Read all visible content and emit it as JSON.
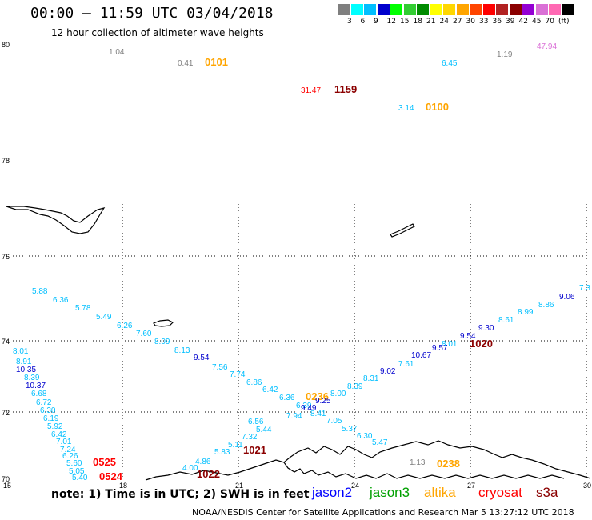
{
  "header": {
    "title": "00:00 – 11:59 UTC 03/04/2018",
    "subtitle": "12 hour collection of altimeter wave heights"
  },
  "scale": {
    "unit": "(ft)",
    "colors": [
      "#7f7f7f",
      "#00ffff",
      "#00bfff",
      "#0000cd",
      "#00ff00",
      "#32cd32",
      "#008b00",
      "#ffff00",
      "#ffd700",
      "#ffa500",
      "#ff4500",
      "#ff0000",
      "#b22222",
      "#8b0000",
      "#9400d3",
      "#da70d6",
      "#ff69b4",
      "#000000"
    ],
    "labels": [
      "3",
      "6",
      "9",
      "12",
      "15",
      "18",
      "21",
      "24",
      "27",
      "30",
      "33",
      "36",
      "39",
      "42",
      "45",
      "70"
    ]
  },
  "axes": {
    "lat_labels": [
      "80",
      "78",
      "76",
      "74",
      "72",
      "70"
    ],
    "lon_labels": [
      "15",
      "18",
      "21",
      "24",
      "27",
      "30"
    ]
  },
  "points": [
    {
      "v": "1.04",
      "c": "#7f7f7f"
    },
    {
      "v": "0.41",
      "c": "#7f7f7f"
    },
    {
      "v": "0101",
      "c": "#ffa500",
      "tag": true
    },
    {
      "v": "6.45",
      "c": "#00bfff"
    },
    {
      "v": "1.19",
      "c": "#7f7f7f"
    },
    {
      "v": "47.94",
      "c": "#da70d6"
    },
    {
      "v": "31.47",
      "c": "#ff0000"
    },
    {
      "v": "1159",
      "c": "#8b0000",
      "tag": true
    },
    {
      "v": "3.14",
      "c": "#00bfff"
    },
    {
      "v": "0100",
      "c": "#ffa500",
      "tag": true
    },
    {
      "v": "5.88",
      "c": "#00bfff"
    },
    {
      "v": "6.36",
      "c": "#00bfff"
    },
    {
      "v": "5.78",
      "c": "#00bfff"
    },
    {
      "v": "5.49",
      "c": "#00bfff"
    },
    {
      "v": "6.26",
      "c": "#00bfff"
    },
    {
      "v": "7.60",
      "c": "#00bfff"
    },
    {
      "v": "8.09",
      "c": "#00bfff"
    },
    {
      "v": "8.13",
      "c": "#00bfff"
    },
    {
      "v": "9.54",
      "c": "#0000cd"
    },
    {
      "v": "7.56",
      "c": "#00bfff"
    },
    {
      "v": "7.74",
      "c": "#00bfff"
    },
    {
      "v": "6.86",
      "c": "#00bfff"
    },
    {
      "v": "6.42",
      "c": "#00bfff"
    },
    {
      "v": "6.36",
      "c": "#00bfff"
    },
    {
      "v": "6.39",
      "c": "#00bfff"
    },
    {
      "v": "9.49",
      "c": "#0000cd"
    },
    {
      "v": "0236",
      "c": "#ffa500",
      "tag": true
    },
    {
      "v": "9.25",
      "c": "#0000cd"
    },
    {
      "v": "8.00",
      "c": "#00bfff"
    },
    {
      "v": "8.39",
      "c": "#00bfff"
    },
    {
      "v": "8.31",
      "c": "#00bfff"
    },
    {
      "v": "9.02",
      "c": "#0000cd"
    },
    {
      "v": "7.61",
      "c": "#00bfff"
    },
    {
      "v": "10.67",
      "c": "#0000cd"
    },
    {
      "v": "9.57",
      "c": "#0000cd"
    },
    {
      "v": "8.01",
      "c": "#00bfff"
    },
    {
      "v": "1020",
      "c": "#8b0000",
      "tag": true
    },
    {
      "v": "9.54",
      "c": "#0000cd"
    },
    {
      "v": "9.30",
      "c": "#0000cd"
    },
    {
      "v": "8.61",
      "c": "#00bfff"
    },
    {
      "v": "8.99",
      "c": "#00bfff"
    },
    {
      "v": "8.86",
      "c": "#00bfff"
    },
    {
      "v": "9.06",
      "c": "#0000cd"
    },
    {
      "v": "7.3",
      "c": "#00bfff"
    },
    {
      "v": "8.01",
      "c": "#00bfff"
    },
    {
      "v": "8.91",
      "c": "#00bfff"
    },
    {
      "v": "10.35",
      "c": "#0000cd"
    },
    {
      "v": "8.39",
      "c": "#00bfff"
    },
    {
      "v": "10.37",
      "c": "#0000cd"
    },
    {
      "v": "6.68",
      "c": "#00bfff"
    },
    {
      "v": "6.72",
      "c": "#00bfff"
    },
    {
      "v": "6.30",
      "c": "#00bfff"
    },
    {
      "v": "6.19",
      "c": "#00bfff"
    },
    {
      "v": "5.92",
      "c": "#00bfff"
    },
    {
      "v": "6.42",
      "c": "#00bfff"
    },
    {
      "v": "7.01",
      "c": "#00bfff"
    },
    {
      "v": "7.24",
      "c": "#00bfff"
    },
    {
      "v": "6.26",
      "c": "#00bfff"
    },
    {
      "v": "5.60",
      "c": "#00bfff"
    },
    {
      "v": "0525",
      "c": "#ff0000",
      "tag": true
    },
    {
      "v": "5.05",
      "c": "#00bfff"
    },
    {
      "v": "5.40",
      "c": "#00bfff"
    },
    {
      "v": "0524",
      "c": "#ff0000",
      "tag": true
    },
    {
      "v": "7.94",
      "c": "#00bfff"
    },
    {
      "v": "8.41",
      "c": "#00bfff"
    },
    {
      "v": "7.05",
      "c": "#00bfff"
    },
    {
      "v": "5.37",
      "c": "#00bfff"
    },
    {
      "v": "6.30",
      "c": "#00bfff"
    },
    {
      "v": "5.47",
      "c": "#00bfff"
    },
    {
      "v": "6.56",
      "c": "#00bfff"
    },
    {
      "v": "5.44",
      "c": "#00bfff"
    },
    {
      "v": "7.32",
      "c": "#00bfff"
    },
    {
      "v": "5.11",
      "c": "#00bfff"
    },
    {
      "v": "5.83",
      "c": "#00bfff"
    },
    {
      "v": "1021",
      "c": "#8b0000",
      "tag": true
    },
    {
      "v": "4.86",
      "c": "#00bfff"
    },
    {
      "v": "4.00",
      "c": "#00bfff"
    },
    {
      "v": "1022",
      "c": "#8b0000",
      "tag": true
    },
    {
      "v": "0238",
      "c": "#ffa500",
      "tag": true
    },
    {
      "v": "1.13",
      "c": "#7f7f7f"
    }
  ],
  "note": "note: 1) Time is in UTC; 2) SWH is in feet",
  "legend": [
    {
      "label": "jason2",
      "color": "#0000ff"
    },
    {
      "label": "jason3",
      "color": "#00a000"
    },
    {
      "label": "altika",
      "color": "#ffa500"
    },
    {
      "label": "cryosat",
      "color": "#ff0000"
    },
    {
      "label": "s3a",
      "color": "#8b0000"
    }
  ],
  "footer": "NOAA/NESDIS Center for Satellite Applications and Research    Mar  5 13:27:12 UTC 2018"
}
